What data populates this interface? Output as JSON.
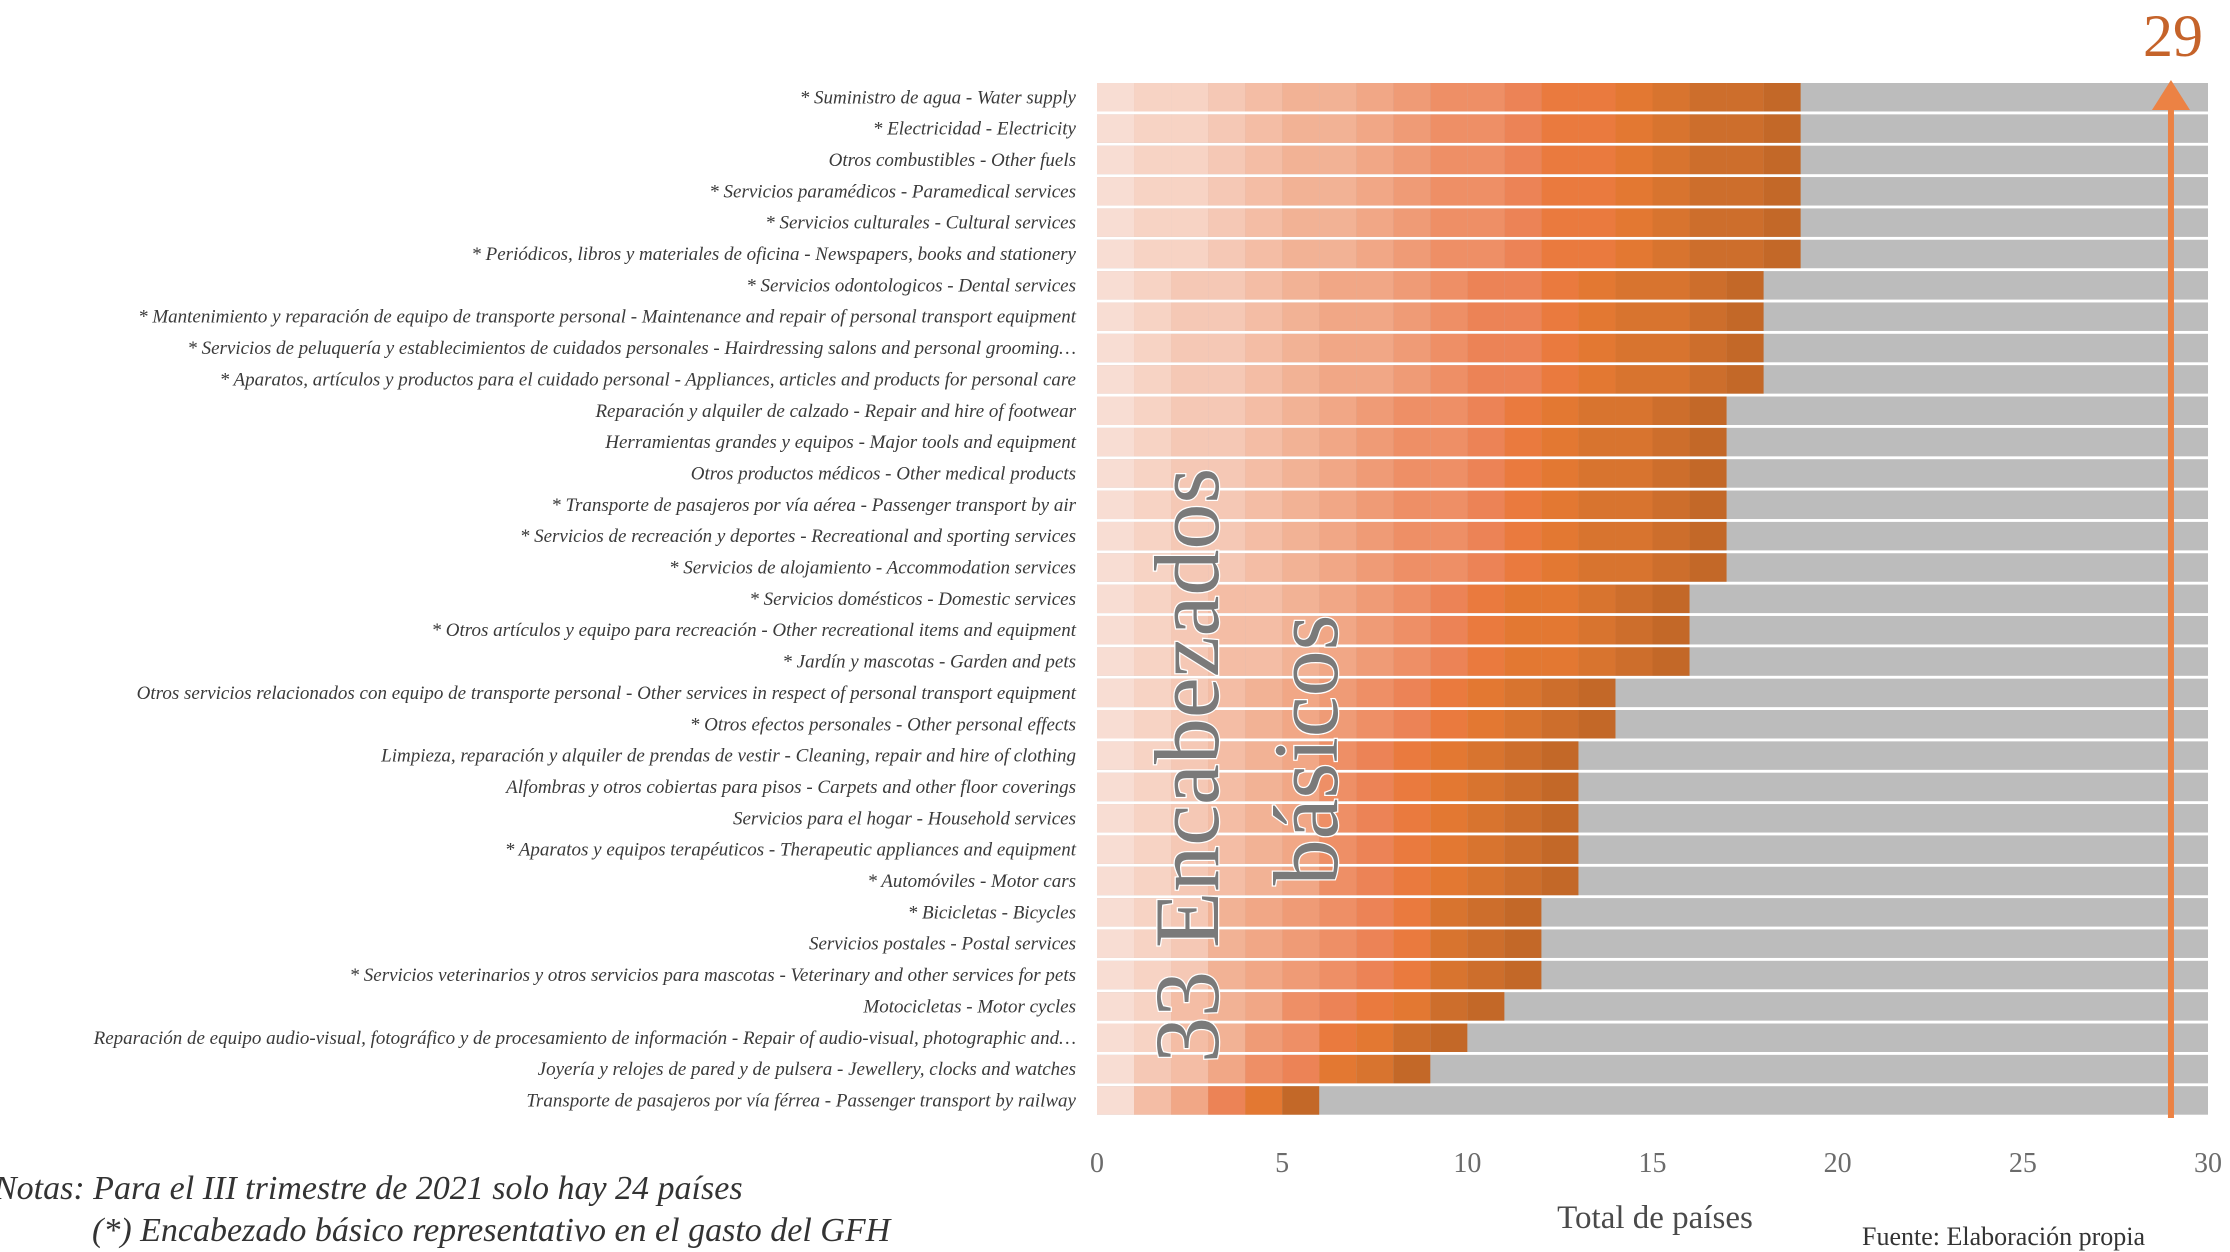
{
  "chart_data": {
    "type": "bar",
    "orientation": "horizontal",
    "stacked": true,
    "title": "",
    "xlabel": "Total de países",
    "ylabel": "",
    "xlim": [
      0,
      30
    ],
    "x_ticks": [
      "0",
      "5",
      "10",
      "15",
      "20",
      "25",
      "30"
    ],
    "grid": false,
    "legend": "none",
    "categories": [
      "* Suministro de agua - Water supply",
      "* Electricidad - Electricity",
      "Otros combustibles - Other fuels",
      "* Servicios paramédicos - Paramedical services",
      "* Servicios culturales - Cultural services",
      "* Periódicos, libros y materiales de oficina - Newspapers, books and stationery",
      "* Servicios odontologicos - Dental services",
      "* Mantenimiento y reparación de equipo de transporte personal - Maintenance and repair of personal transport equipment",
      "* Servicios de peluquería y establecimientos de cuidados personales - Hairdressing salons and personal grooming…",
      "* Aparatos, artículos y productos para el cuidado personal - Appliances, articles and products for personal care",
      "Reparación y alquiler de calzado - Repair and hire of footwear",
      "Herramientas grandes y equipos - Major tools and equipment",
      "Otros productos médicos - Other medical products",
      "* Transporte de pasajeros por vía aérea - Passenger transport by air",
      "* Servicios de recreación y deportes - Recreational and sporting services",
      "* Servicios de alojamiento - Accommodation services",
      "* Servicios domésticos - Domestic services",
      "* Otros artículos y equipo para recreación - Other recreational items and equipment",
      "* Jardín y mascotas - Garden and pets",
      "Otros servicios relacionados con equipo de transporte personal - Other services in respect of personal transport equipment",
      "* Otros efectos personales - Other personal effects",
      "Limpieza, reparación y alquiler de prendas de vestir - Cleaning, repair and hire of clothing",
      "Alfombras y otros cobiertas para pisos - Carpets and other floor coverings",
      "Servicios para el hogar - Household services",
      "* Aparatos y equipos terapéuticos - Therapeutic appliances and equipment",
      "* Automóviles - Motor cars",
      "* Bicicletas - Bicycles",
      "Servicios postales - Postal services",
      "* Servicios veterinarios y otros servicios para mascotas - Veterinary and other services for pets",
      "Motocicletas - Motor cycles",
      "Reparación de equipo audio-visual, fotográfico y de procesamiento de información - Repair of audio-visual, photographic and…",
      "Joyería y relojes de pared y de pulsera - Jewellery, clocks and watches",
      "Transporte de pasajeros por vía férrea - Passenger transport by railway"
    ],
    "values": [
      19,
      19,
      19,
      19,
      19,
      19,
      18,
      18,
      18,
      18,
      17,
      17,
      17,
      17,
      17,
      17,
      16,
      16,
      16,
      14,
      14,
      13,
      13,
      13,
      13,
      13,
      12,
      12,
      12,
      11,
      10,
      9,
      6
    ],
    "background_total": 30,
    "max_reference": 29,
    "colors": {
      "scale": [
        "#f8ddd3",
        "#f7d3c4",
        "#f5c8b5",
        "#f4bda5",
        "#f2b295",
        "#f1a786",
        "#ef9b76",
        "#ee8f66",
        "#ec8356",
        "#ea7a3e",
        "#e37832",
        "#d8742f",
        "#cd6e2c",
        "#c36828"
      ],
      "background": "#bcbcbc",
      "arrow": "#ec8244"
    }
  },
  "annotations": {
    "big_label_line1": "33 Encabezados",
    "big_label_line2": "básicos",
    "max_value_label": "29"
  },
  "notes": {
    "line1": "Notas: Para el III trimestre de 2021 solo hay 24 países",
    "line2": "(*) Encabezado básico representativo en el gasto del GFH"
  },
  "source": "Fuente: Elaboración propia"
}
